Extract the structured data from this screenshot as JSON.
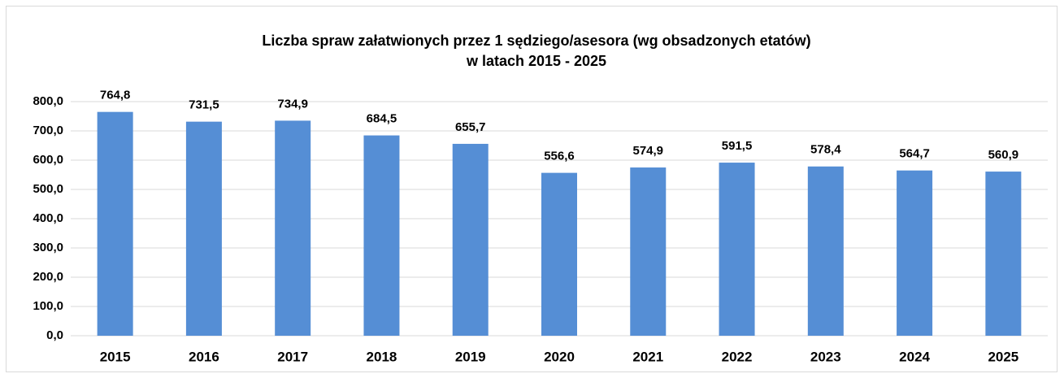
{
  "chart_data": {
    "type": "bar",
    "title": [
      "Liczba spraw załatwionych przez 1 sędziego/asesora (wg obsadzonych etatów)",
      "w latach 2015 - 2025"
    ],
    "categories": [
      "2015",
      "2016",
      "2017",
      "2018",
      "2019",
      "2020",
      "2021",
      "2022",
      "2023",
      "2024",
      "2025"
    ],
    "values": [
      764.8,
      731.5,
      734.9,
      684.5,
      655.7,
      556.6,
      574.9,
      591.5,
      578.4,
      564.7,
      560.9
    ],
    "value_labels": [
      "764,8",
      "731,5",
      "734,9",
      "684,5",
      "655,7",
      "556,6",
      "574,9",
      "591,5",
      "578,4",
      "564,7",
      "560,9"
    ],
    "color": "#558ed5",
    "ylim": [
      0,
      800
    ],
    "yticks": [
      {
        "value": 0,
        "label": "0,0"
      },
      {
        "value": 100,
        "label": "100,0"
      },
      {
        "value": 200,
        "label": "200,0"
      },
      {
        "value": 300,
        "label": "300,0"
      },
      {
        "value": 400,
        "label": "400,0"
      },
      {
        "value": 500,
        "label": "500,0"
      },
      {
        "value": 600,
        "label": "600,0"
      },
      {
        "value": 700,
        "label": "700,0"
      },
      {
        "value": 800,
        "label": "800,0"
      }
    ],
    "grid": true
  }
}
